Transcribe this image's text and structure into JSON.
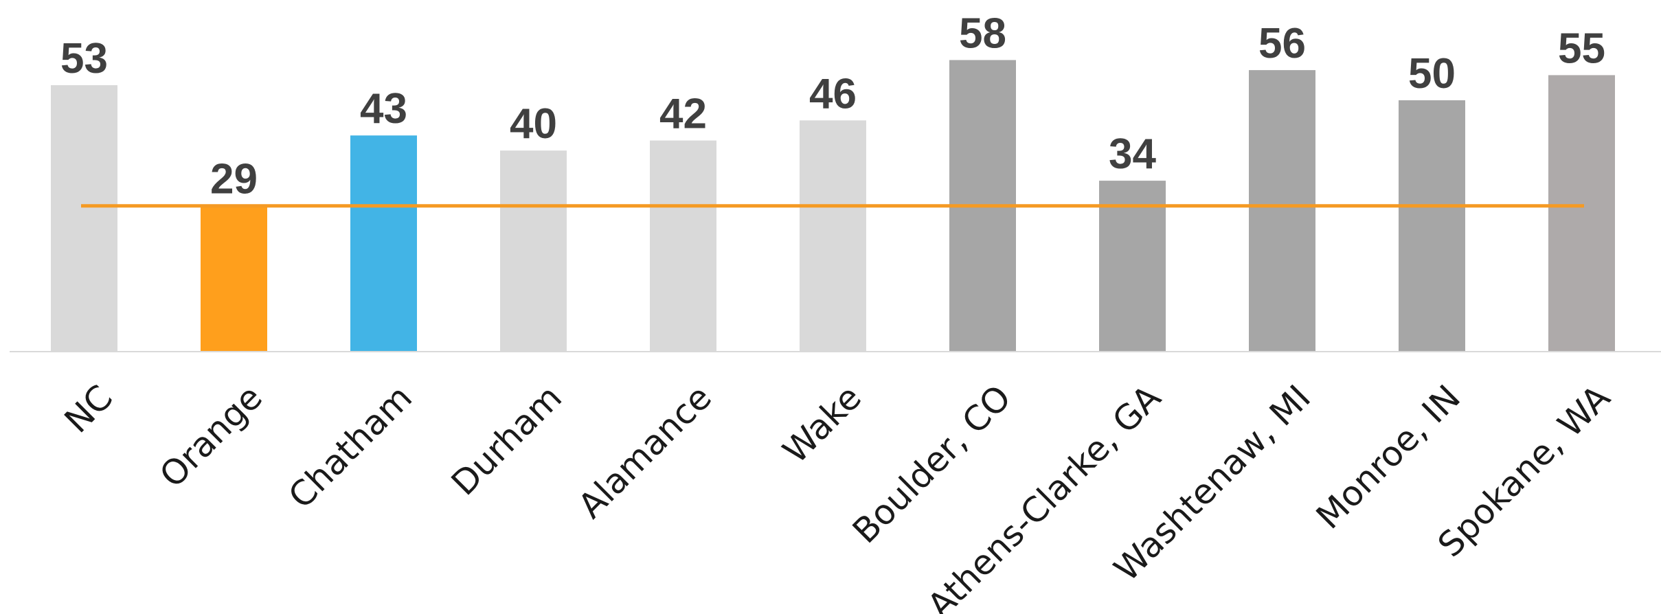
{
  "chart_data": {
    "type": "bar",
    "title": "",
    "xlabel": "",
    "ylabel": "",
    "ylim": [
      0,
      60
    ],
    "grid": false,
    "categories": [
      "NC",
      "Orange",
      "Chatham",
      "Durham",
      "Alamance",
      "Wake",
      "Boulder, CO",
      "Athens-Clarke, GA",
      "Washtenaw, MI",
      "Monroe, IN",
      "Spokane, WA"
    ],
    "values": [
      53,
      29,
      43,
      40,
      42,
      46,
      58,
      34,
      56,
      50,
      55
    ],
    "data_labels": [
      "53",
      "29",
      "43",
      "40",
      "42",
      "46",
      "58",
      "34",
      "56",
      "50",
      "55"
    ],
    "bar_colors": [
      "#d9d9d9",
      "#ff9f1c",
      "#42b4e6",
      "#d9d9d9",
      "#d9d9d9",
      "#d9d9d9",
      "#a6a6a6",
      "#a6a6a6",
      "#a6a6a6",
      "#a6a6a6",
      "#aeaaaa"
    ],
    "reference_line": {
      "value": 29,
      "color": "#f59a23"
    },
    "colors": {
      "axis": "#d9d9d9",
      "label_text": "#404040",
      "category_text": "#1a1a1a"
    }
  }
}
